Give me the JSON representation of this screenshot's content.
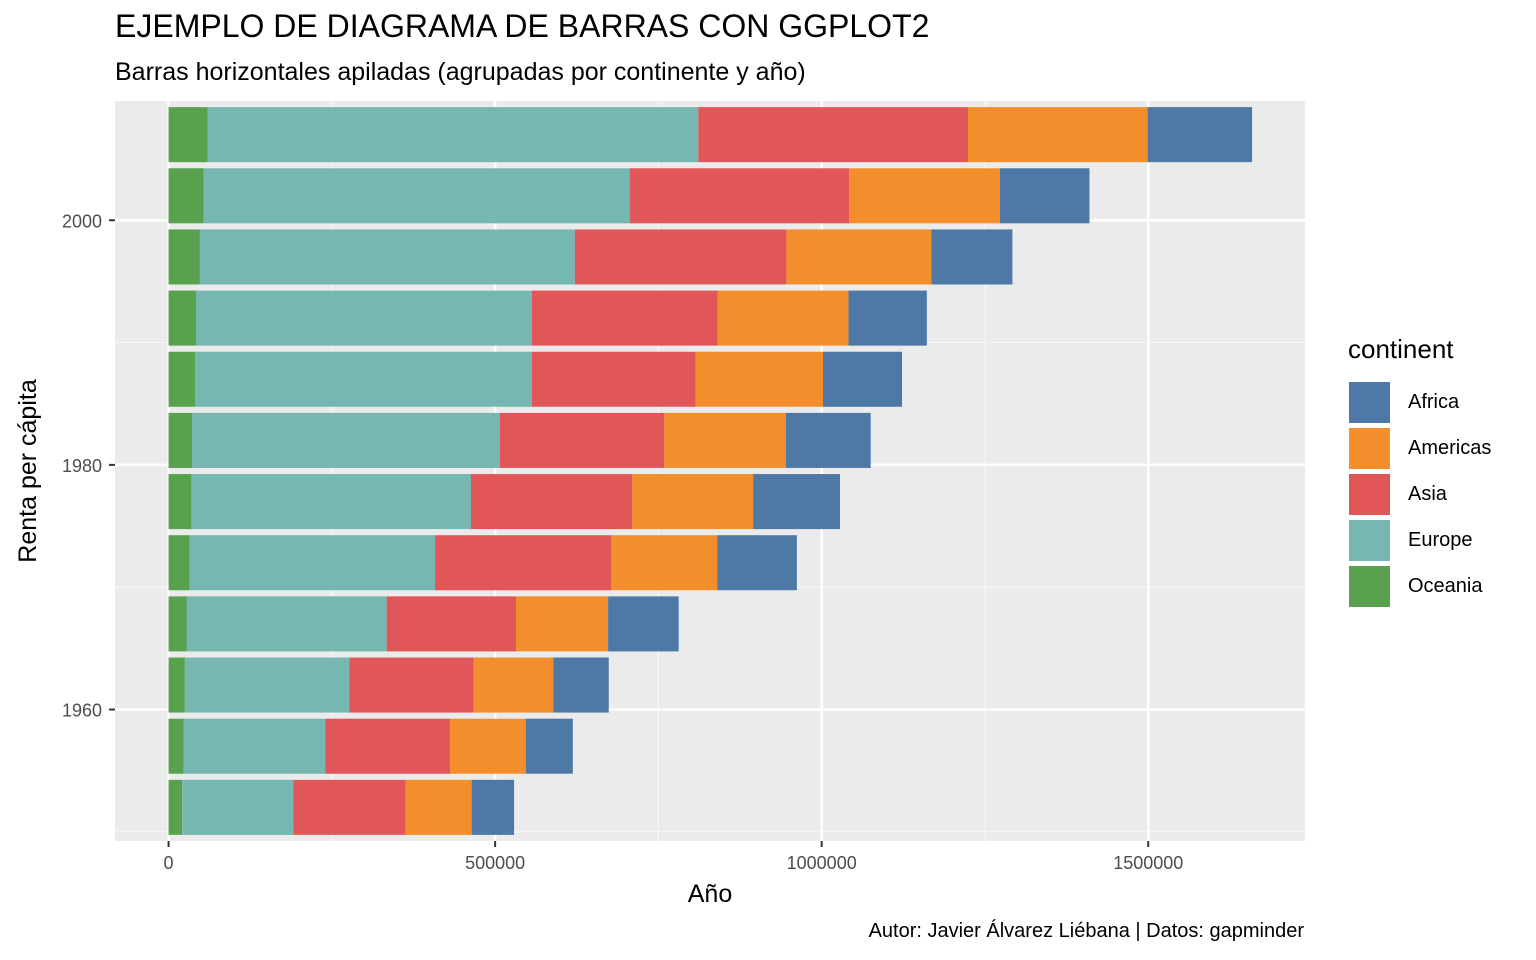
{
  "title": "EJEMPLO DE DIAGRAMA DE BARRAS CON GGPLOT2",
  "subtitle": "Barras horizontales apiladas (agrupadas por continente y año)",
  "caption": "Autor: Javier Álvarez Liébana | Datos: gapminder",
  "legend": {
    "title": "continent",
    "items": [
      {
        "label": "Africa",
        "color": "#4E79A7"
      },
      {
        "label": "Americas",
        "color": "#F28E2B"
      },
      {
        "label": "Asia",
        "color": "#E15759"
      },
      {
        "label": "Europe",
        "color": "#76B7B2"
      },
      {
        "label": "Oceania",
        "color": "#59A14F"
      }
    ]
  },
  "chart_data": {
    "type": "bar",
    "orientation": "horizontal",
    "stacked": true,
    "xlabel": "Año",
    "ylabel": "Renta per cápita",
    "xlim": [
      -82000,
      1740000
    ],
    "ylim": [
      1949.25,
      2009.75
    ],
    "x_ticks": [
      0,
      500000,
      1000000,
      1500000
    ],
    "x_tick_labels": [
      "0",
      "500000",
      "1000000",
      "1500000"
    ],
    "y_ticks": [
      1960,
      1980,
      2000
    ],
    "y_tick_labels": [
      "1960",
      "1980",
      "2000"
    ],
    "grid": true,
    "legend_position": "right",
    "categories": [
      1952,
      1957,
      1962,
      1967,
      1972,
      1977,
      1982,
      1987,
      1992,
      1997,
      2002,
      2007
    ],
    "stack_order": [
      "Oceania",
      "Europe",
      "Asia",
      "Americas",
      "Africa"
    ],
    "series": [
      {
        "name": "Oceania",
        "color": "#59A14F",
        "values": [
          21000,
          23000,
          25000,
          28000,
          32000,
          35000,
          36000,
          41000,
          42000,
          48000,
          54000,
          60000
        ]
      },
      {
        "name": "Europe",
        "color": "#76B7B2",
        "values": [
          170000,
          217000,
          252000,
          306000,
          376000,
          428000,
          471000,
          515000,
          514000,
          574000,
          652000,
          751000
        ]
      },
      {
        "name": "Asia",
        "color": "#E15759",
        "values": [
          172000,
          191000,
          190000,
          198000,
          270000,
          247000,
          252000,
          251000,
          285000,
          324000,
          336000,
          413000
        ]
      },
      {
        "name": "Americas",
        "color": "#F28E2B",
        "values": [
          101000,
          116000,
          122000,
          141000,
          162000,
          185000,
          186000,
          195000,
          200000,
          222000,
          231000,
          275000
        ]
      },
      {
        "name": "Africa",
        "color": "#4E79A7",
        "values": [
          65000,
          72000,
          85000,
          108000,
          122000,
          133000,
          130000,
          121000,
          120000,
          124000,
          137000,
          160000
        ]
      }
    ]
  }
}
